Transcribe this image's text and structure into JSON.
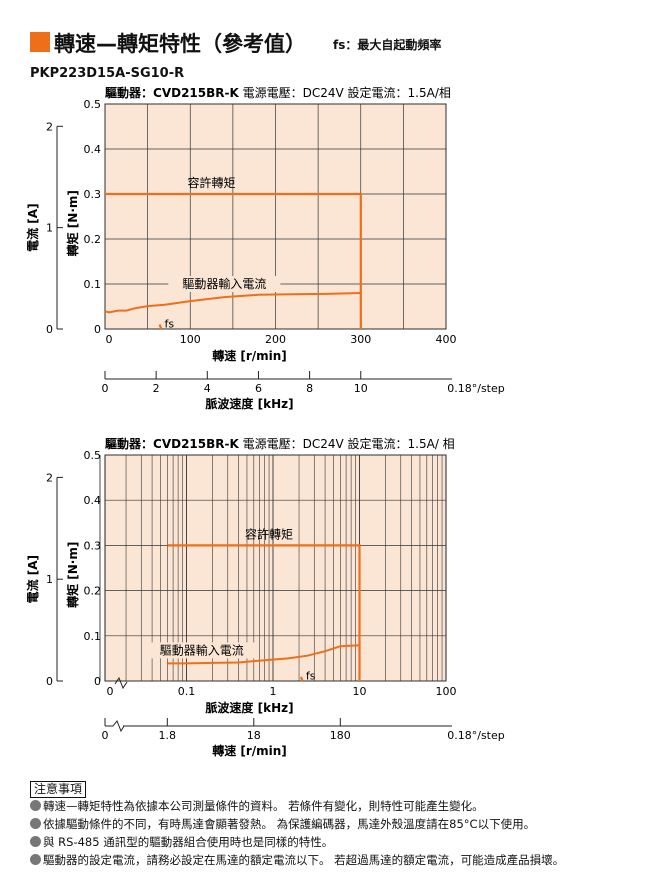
{
  "header": {
    "title": "轉速—轉矩特性（參考值）",
    "subtitle": "fs：最大自起動頻率",
    "accent_color": "#ee6f1a"
  },
  "model": "PKP223D15A-SG10-R",
  "chart_data": [
    {
      "type": "line",
      "driver_info": {
        "driver_label": "驅動器：",
        "driver_model": "CVD215BR-K",
        "voltage": "電源電壓：DC24V",
        "current": "設定電流：1.5A/相"
      },
      "xscale": "linear",
      "xlim": [
        0,
        400
      ],
      "xticks": [
        "0",
        "100",
        "200",
        "300",
        "400"
      ],
      "xlabel": "轉速 [r/min]",
      "ylim": [
        0,
        0.5
      ],
      "yticks": [
        "0",
        "0.1",
        "0.2",
        "0.3",
        "0.4",
        "0.5"
      ],
      "ylabel": "轉矩 [N·m]",
      "y2lim": [
        0,
        2.22
      ],
      "y2ticks": [
        "0",
        "1",
        "2"
      ],
      "y2label": "電流 [A]",
      "sec_axis": {
        "ticks": [
          "0",
          "2",
          "4",
          "6",
          "8",
          "10"
        ],
        "tick_values": [
          0,
          60,
          120,
          180,
          240,
          300
        ],
        "suffix": "0.18°/step",
        "label": "脈波速度 [kHz]"
      },
      "grid": true,
      "series": [
        {
          "name": "容許轉矩",
          "color": "#ee6f1a",
          "x": [
            0,
            300,
            300
          ],
          "y": [
            0.3,
            0.3,
            0
          ]
        },
        {
          "name": "驅動器輸入電流",
          "color": "#ee6f1a",
          "x": [
            0,
            5,
            15,
            25,
            35,
            50,
            70,
            100,
            140,
            180,
            220,
            260,
            300
          ],
          "y": [
            0.039,
            0.037,
            0.041,
            0.041,
            0.046,
            0.051,
            0.054,
            0.062,
            0.071,
            0.076,
            0.077,
            0.078,
            0.08
          ]
        },
        {
          "name": "fs",
          "color": "#ee6f1a",
          "x": [
            64,
            66
          ],
          "y": [
            0.01,
            0
          ]
        }
      ],
      "annotations": {
        "allow": "容許轉矩",
        "current": "驅動器輸入電流",
        "fs": "fs"
      }
    },
    {
      "type": "line",
      "driver_info": {
        "driver_label": "驅動器：",
        "driver_model": "CVD215BR-K",
        "voltage": "電源電壓：DC24V",
        "current": "設定電流：1.5A/ 相"
      },
      "xscale": "log",
      "xlim": [
        0.01,
        100
      ],
      "xticks": [
        "0.1",
        "1",
        "10",
        "100"
      ],
      "xzero": "0",
      "xlabel": "脈波速度 [kHz]",
      "ylim": [
        0,
        0.5
      ],
      "yticks": [
        "0",
        "0.1",
        "0.2",
        "0.3",
        "0.4",
        "0.5"
      ],
      "ylabel": "轉矩 [N·m]",
      "y2lim": [
        0,
        2.22
      ],
      "y2ticks": [
        "0",
        "1",
        "2"
      ],
      "y2label": "電流 [A]",
      "sec_axis": {
        "ticks": [
          "1.8",
          "18",
          "180"
        ],
        "tick_values": [
          0.06,
          0.6,
          6
        ],
        "zero": "0",
        "suffix": "0.18°/step",
        "label": "轉速 [r/min]"
      },
      "grid": true,
      "series": [
        {
          "name": "容許轉矩",
          "color": "#ee6f1a",
          "x": [
            0.06,
            10,
            10
          ],
          "y": [
            0.3,
            0.3,
            0
          ]
        },
        {
          "name": "驅動器輸入電流",
          "color": "#ee6f1a",
          "x": [
            0.06,
            0.1,
            0.2,
            0.4,
            0.8,
            1.5,
            2.5,
            4,
            6,
            10
          ],
          "y": [
            0.039,
            0.039,
            0.04,
            0.041,
            0.046,
            0.05,
            0.056,
            0.066,
            0.077,
            0.079
          ]
        },
        {
          "name": "fs",
          "color": "#ee6f1a",
          "x": [
            2.1,
            2.2
          ],
          "y": [
            0.009,
            0
          ]
        }
      ],
      "annotations": {
        "allow": "容許轉矩",
        "current": "驅動器輸入電流",
        "fs": "fs"
      }
    }
  ],
  "notes": {
    "title": "注意事項",
    "items": [
      "轉速—轉矩特性為依據本公司測量條件的資料。 若條件有變化，則特性可能產生變化。",
      "依據驅動條件的不同，有時馬達會顯著發熱。 為保護編碼器，馬達外殼溫度請在85°C以下使用。",
      "與 RS-485 通訊型的驅動器組合使用時也是同樣的特性。",
      "驅動器的設定電流，請務必設定在馬達的額定電流以下。 若超過馬達的額定電流，可能造成產品損壞。"
    ]
  }
}
